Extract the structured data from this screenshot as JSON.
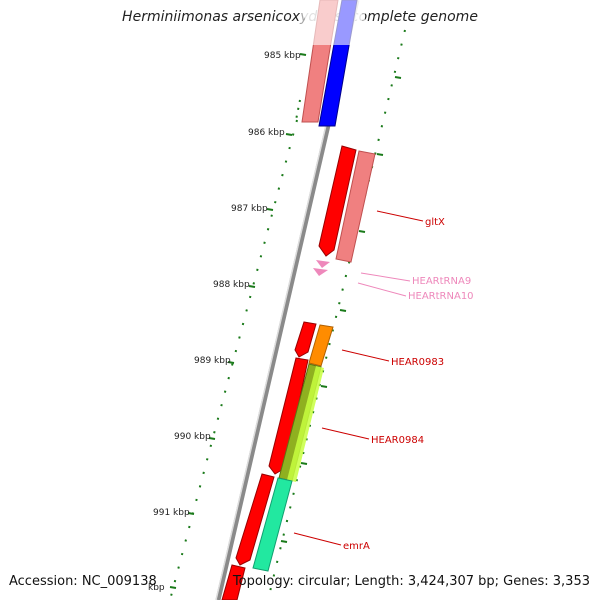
{
  "title": "Herminiimonas arsenicoxydans, complete genome",
  "footer": {
    "accession": "Accession: NC_009138",
    "topology": "Topology: circular; Length: 3,424,307 bp; Genes: 3,353"
  },
  "scale_labels": [
    "985 kbp",
    "986 kbp",
    "987 kbp",
    "988 kbp",
    "989 kbp",
    "990 kbp",
    "991 kbp",
    "kbp"
  ],
  "gene_labels": [
    {
      "name": "gltX",
      "color": "#cc0000"
    },
    {
      "name": "HEARtRNA9",
      "color": "#ee88bb"
    },
    {
      "name": "HEARtRNA10",
      "color": "#ee88bb"
    },
    {
      "name": "HEAR0983",
      "color": "#cc0000"
    },
    {
      "name": "HEAR0984",
      "color": "#cc0000"
    },
    {
      "name": "emrA",
      "color": "#cc0000"
    }
  ],
  "colors": {
    "backbone": "#8a8a8a",
    "tick": "#1a7a1a",
    "cds_forward": "#ff0000",
    "cds_light": "#f08080",
    "blue_feature": "#0000ff",
    "orange_feature": "#ff8c00",
    "olive_feature": "#8fb020",
    "yellowgreen_feature": "#c8ff40",
    "aqua_feature": "#22e8a0",
    "trna": "#ee88bb"
  }
}
